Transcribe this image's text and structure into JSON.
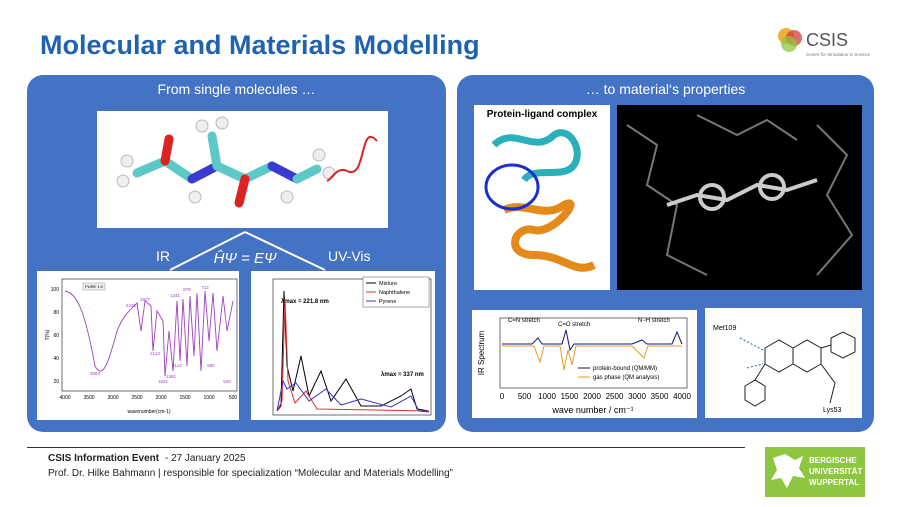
{
  "header": {
    "title": "Molecular and Materials Modelling",
    "logo": "CSIS",
    "logo_tagline": "Centre for Simulation in Science"
  },
  "left_panel": {
    "heading": "From single molecules …",
    "label_ir": "IR",
    "label_uv": "UV-Vis",
    "equation": "ĤΨ = EΨ",
    "ir_plot": {
      "tag": "PURE 1.0",
      "y_label": "T(%)",
      "x_label": "wavenumber(cm-1)",
      "yticks": [
        100,
        80,
        60,
        40,
        20
      ],
      "xticks": [
        4000,
        3500,
        3000,
        2500,
        2000,
        1500,
        1000,
        500
      ],
      "peaks": [
        "3084",
        "2233",
        "1927",
        "2113",
        "1621",
        "1361",
        "1113",
        "1341",
        "878",
        "712",
        "690",
        "540"
      ]
    },
    "uv_plot": {
      "legend": [
        "Mixture",
        "Naphthalene",
        "Pyrene"
      ],
      "annotations": [
        "λmax = 221.8 nm",
        "λmax = 337 nm"
      ]
    }
  },
  "right_panel": {
    "heading": "… to material‘s properties",
    "protein_label": "Protein-ligand complex",
    "ir_spectrum": {
      "y_label": "IR Spectrum",
      "x_label": "wave number / cm⁻¹",
      "xticks": [
        0,
        500,
        1000,
        1500,
        2000,
        2500,
        3000,
        3500,
        4000
      ],
      "annotations": [
        "C=N stretch",
        "C=O stretch",
        "N−H stretch"
      ],
      "legend": [
        "protein-bound (QM/MM)",
        "gas phase (QM analysis)"
      ]
    },
    "structure_labels": [
      "Met109",
      "Lys53"
    ]
  },
  "footer": {
    "event": "CSIS Information Event",
    "date": "- 27 January 2025",
    "speaker": "Prof. Dr. Hilke Bahmann | responsible for specialization “Molecular and Materials Modelling”",
    "university": [
      "BERGISCHE",
      "UNIVERSITÄT",
      "WUPPERTAL"
    ]
  }
}
